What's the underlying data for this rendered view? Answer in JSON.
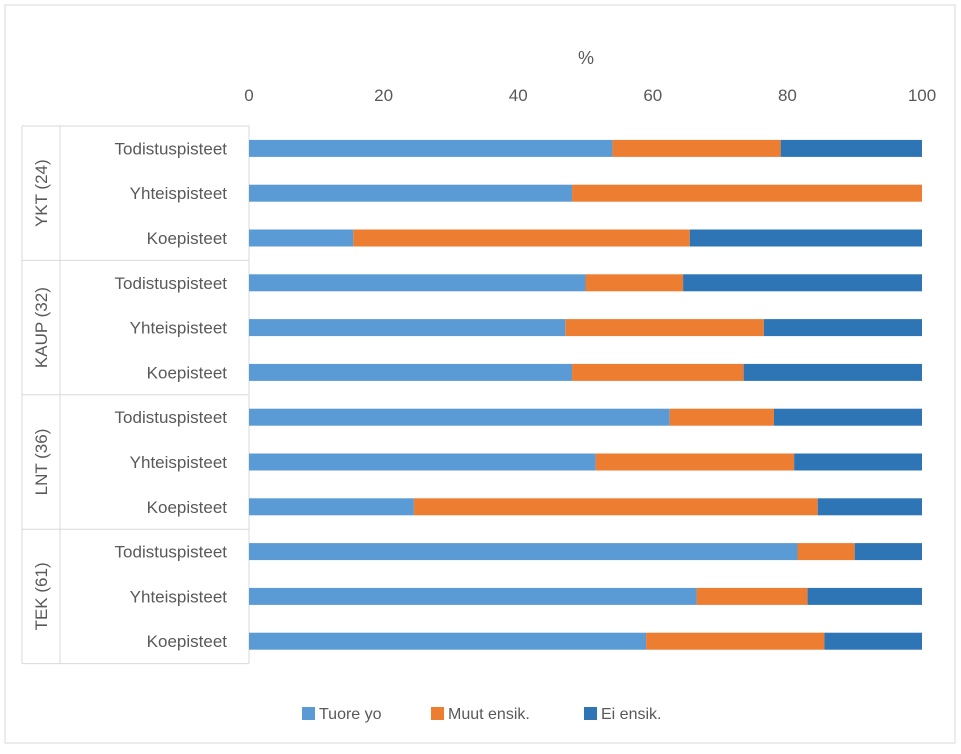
{
  "chart_data": {
    "type": "bar",
    "orientation": "horizontal",
    "stacked": true,
    "title": "",
    "xlabel": "%",
    "ylabel": "",
    "xlim": [
      0,
      100
    ],
    "x_ticks": [
      "0",
      "20",
      "40",
      "60",
      "80",
      "100"
    ],
    "grid": false,
    "legend_position": "bottom",
    "groups": [
      {
        "label": "YKT (24)",
        "categories": [
          "Todistuspisteet",
          "Yhteispisteet",
          "Koepisteet"
        ]
      },
      {
        "label": "KAUP (32)",
        "categories": [
          "Todistuspisteet",
          "Yhteispisteet",
          "Koepisteet"
        ]
      },
      {
        "label": "LNT (36)",
        "categories": [
          "Todistuspisteet",
          "Yhteispisteet",
          "Koepisteet"
        ]
      },
      {
        "label": "TEK (61)",
        "categories": [
          "Todistuspisteet",
          "Yhteispisteet",
          "Koepisteet"
        ]
      }
    ],
    "series": [
      {
        "name": "Tuore yo",
        "color": "#5B9BD5",
        "values": [
          54,
          48,
          15.5,
          50,
          47,
          48,
          62.5,
          51.5,
          24.5,
          81.5,
          66.5,
          59
        ]
      },
      {
        "name": "Muut ensik.",
        "color": "#ED7D31",
        "values": [
          25,
          52,
          50,
          14.5,
          29.5,
          25.5,
          15.5,
          29.5,
          60,
          8.5,
          16.5,
          26.5
        ]
      },
      {
        "name": "Ei ensik.",
        "color": "#2E75B6",
        "values": [
          21,
          0,
          34.5,
          35.5,
          23.5,
          26.5,
          22,
          19,
          15.5,
          10,
          17,
          14.5
        ]
      }
    ]
  }
}
